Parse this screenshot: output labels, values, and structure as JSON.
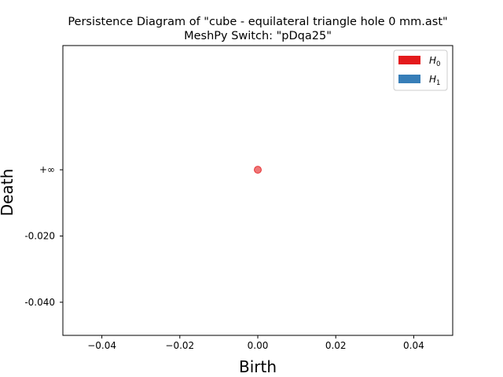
{
  "chart_data": {
    "type": "scatter",
    "title_line1": "Persistence Diagram of \"cube - equilateral triangle hole 0 mm.ast\"",
    "title_line2": "MeshPy Switch: \"pDqa25\"",
    "xlabel": "Birth",
    "ylabel": "Death",
    "xlim": [
      -0.05,
      0.05
    ],
    "ylim": [
      -0.05,
      0.0375
    ],
    "grid": false,
    "legend_position": "top-right",
    "x_ticks": [
      {
        "value": -0.04,
        "label": "−0.04"
      },
      {
        "value": -0.02,
        "label": "−0.02"
      },
      {
        "value": 0.0,
        "label": "0.00"
      },
      {
        "value": 0.02,
        "label": "0.02"
      },
      {
        "value": 0.04,
        "label": "0.04"
      }
    ],
    "y_ticks": [
      {
        "value": -0.04,
        "label": "-0.040"
      },
      {
        "value": -0.02,
        "label": "-0.020"
      },
      {
        "value": 0.0,
        "label": "+∞"
      }
    ],
    "series": [
      {
        "name": "H",
        "subscript": "0",
        "color": "#e41a1c",
        "points": [
          {
            "x": 0.0,
            "y": 0.0
          }
        ]
      },
      {
        "name": "H",
        "subscript": "1",
        "color": "#377eb8",
        "points": []
      }
    ]
  }
}
